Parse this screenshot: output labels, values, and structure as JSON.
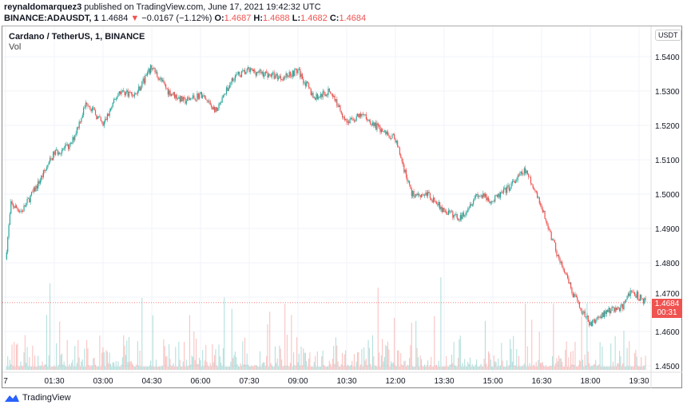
{
  "header": {
    "author": "reynaldomarquez3",
    "published": " published on TradingView.com, June 17, 2021 19:42:32 UTC",
    "symbol": "BINANCE:ADAUSDT, 1",
    "last": "1.4684",
    "change": "−0.0167 (−1.12%)",
    "o_label": "O:",
    "o": "1.4687",
    "h_label": "H:",
    "h": "1.4688",
    "l_label": "L:",
    "l": "1.4682",
    "c_label": "C:",
    "c": "1.4684"
  },
  "legend": {
    "title": "Cardano / TetherUS, 1, BINANCE",
    "vol": "Vol"
  },
  "axis": {
    "currency": "USDT",
    "price_tag": "1.4684",
    "countdown": "00:31"
  },
  "footer": {
    "brand": "TradingView"
  },
  "colors": {
    "up": "#26a69a",
    "down": "#ef5350"
  },
  "chart_data": {
    "type": "candlestick",
    "ylim": [
      1.45,
      1.54
    ],
    "yticks": [
      "1.5400",
      "1.5300",
      "1.5200",
      "1.5100",
      "1.5000",
      "1.4900",
      "1.4800",
      "1.4700",
      "1.4600",
      "1.4500"
    ],
    "xticks": [
      "7",
      "01:30",
      "03:00",
      "04:30",
      "06:00",
      "07:30",
      "09:00",
      "10:30",
      "12:00",
      "13:30",
      "15:00",
      "16:30",
      "18:00",
      "19:30"
    ],
    "xtick_minutes": [
      0,
      90,
      180,
      270,
      360,
      450,
      540,
      630,
      720,
      810,
      900,
      990,
      1080,
      1170
    ],
    "price_path_minutes": [
      0,
      10,
      30,
      60,
      90,
      120,
      150,
      180,
      210,
      240,
      270,
      300,
      330,
      360,
      390,
      420,
      450,
      480,
      510,
      540,
      570,
      600,
      630,
      660,
      690,
      720,
      750,
      780,
      810,
      840,
      870,
      900,
      930,
      960,
      990,
      1020,
      1050,
      1080,
      1110,
      1140,
      1155,
      1182
    ],
    "price_path": [
      1.481,
      1.497,
      1.495,
      1.503,
      1.512,
      1.514,
      1.527,
      1.52,
      1.53,
      1.529,
      1.537,
      1.53,
      1.527,
      1.529,
      1.524,
      1.534,
      1.536,
      1.535,
      1.534,
      1.536,
      1.528,
      1.53,
      1.521,
      1.523,
      1.519,
      1.516,
      1.5,
      1.5,
      1.495,
      1.493,
      1.5,
      1.498,
      1.502,
      1.507,
      1.496,
      1.482,
      1.47,
      1.462,
      1.466,
      1.467,
      1.472,
      1.4684
    ],
    "current_price": 1.4684
  }
}
